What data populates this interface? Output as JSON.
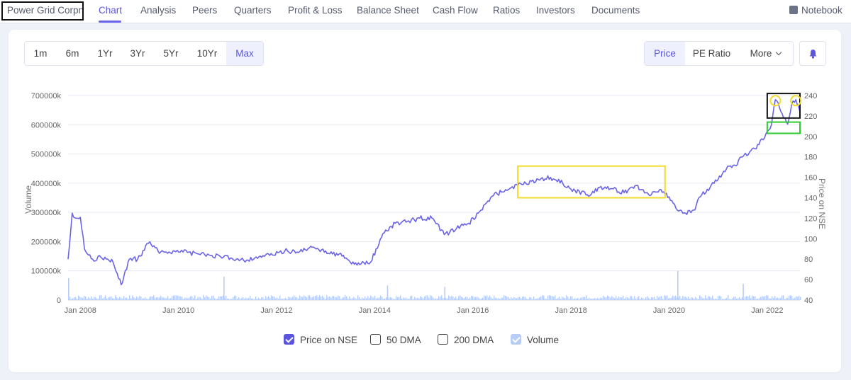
{
  "nav": {
    "company": "Power Grid Corpn",
    "tabs": [
      {
        "label": "Chart",
        "active": true
      },
      {
        "label": "Analysis"
      },
      {
        "label": "Peers"
      },
      {
        "label": "Quarters"
      },
      {
        "label": "Profit & Loss"
      },
      {
        "label": "Balance Sheet"
      },
      {
        "label": "Cash Flow"
      },
      {
        "label": "Ratios"
      },
      {
        "label": "Investors"
      },
      {
        "label": "Documents"
      }
    ],
    "notebook": "Notebook"
  },
  "ranges": [
    "1m",
    "6m",
    "1Yr",
    "3Yr",
    "5Yr",
    "10Yr",
    "Max"
  ],
  "active_range": "Max",
  "metrics": [
    "Price",
    "PE Ratio",
    "More"
  ],
  "active_metric": "Price",
  "colors": {
    "accent": "#5b55e0",
    "price_line": "#6b63e6",
    "volume_bars": "#b7cdf7",
    "annotation_yellow": "#f2da2a",
    "annotation_black": "#111111",
    "annotation_green": "#2ecc2e"
  },
  "legend": [
    {
      "label": "Price on NSE",
      "checked": true,
      "color": "#5b55e0"
    },
    {
      "label": "50 DMA",
      "checked": false
    },
    {
      "label": "200 DMA",
      "checked": false
    },
    {
      "label": "Volume",
      "checked": true,
      "color": "#b7cdf7"
    }
  ],
  "chart_data": {
    "type": "line",
    "title": "",
    "xlabel": "",
    "ylabel_left": "Volume",
    "ylabel_right": "Price on NSE",
    "left_axis": {
      "min": 0,
      "max": 700000000,
      "ticks": [
        "0",
        "100000k",
        "200000k",
        "300000k",
        "400000k",
        "500000k",
        "600000k",
        "700000k"
      ]
    },
    "right_axis": {
      "min": 40,
      "max": 240,
      "ticks": [
        40,
        60,
        80,
        100,
        120,
        140,
        160,
        180,
        200,
        220,
        240
      ]
    },
    "x_axis": {
      "start": "2007-10",
      "end": "2022-09",
      "ticks": [
        "Jan 2008",
        "Jan 2010",
        "Jan 2012",
        "Jan 2014",
        "Jan 2016",
        "Jan 2018",
        "Jan 2020",
        "Jan 2022"
      ]
    },
    "grid": true,
    "series": [
      {
        "name": "Price on NSE",
        "axis": "right",
        "x": [
          "2007-10",
          "2007-11",
          "2007-12",
          "2008-01",
          "2008-02",
          "2008-04",
          "2008-06",
          "2008-09",
          "2008-11",
          "2009-01",
          "2009-03",
          "2009-06",
          "2009-08",
          "2009-10",
          "2009-12",
          "2010-06",
          "2010-12",
          "2011-06",
          "2011-09",
          "2011-12",
          "2012-03",
          "2012-06",
          "2012-09",
          "2013-01",
          "2013-05",
          "2013-08",
          "2013-12",
          "2014-03",
          "2014-06",
          "2014-09",
          "2014-12",
          "2015-03",
          "2015-06",
          "2015-09",
          "2015-12",
          "2016-03",
          "2016-06",
          "2016-09",
          "2016-12",
          "2017-02",
          "2017-05",
          "2017-08",
          "2017-11",
          "2018-02",
          "2018-05",
          "2018-08",
          "2018-11",
          "2019-02",
          "2019-05",
          "2019-08",
          "2019-11",
          "2020-01",
          "2020-03",
          "2020-05",
          "2020-07",
          "2020-09",
          "2020-11",
          "2021-01",
          "2021-03",
          "2021-05",
          "2021-07",
          "2021-09",
          "2021-11",
          "2022-01",
          "2022-02",
          "2022-03",
          "2022-04",
          "2022-05",
          "2022-06",
          "2022-07",
          "2022-08",
          "2022-09"
        ],
        "y": [
          80,
          125,
          120,
          121,
          90,
          80,
          82,
          77,
          55,
          80,
          80,
          97,
          88,
          87,
          88,
          85,
          82,
          79,
          83,
          84,
          88,
          87,
          91,
          88,
          83,
          75,
          77,
          105,
          115,
          117,
          120,
          120,
          104,
          110,
          115,
          128,
          142,
          148,
          152,
          154,
          158,
          160,
          154,
          147,
          143,
          150,
          149,
          145,
          152,
          143,
          148,
          141,
          128,
          125,
          128,
          143,
          150,
          158,
          168,
          172,
          180,
          186,
          192,
          205,
          211,
          236,
          228,
          218,
          212,
          232,
          236,
          224
        ]
      },
      {
        "name": "Volume",
        "axis": "left",
        "note": "daily volume bars; mostly between 3,000k and 20,000k with spikes",
        "spikes": [
          {
            "x": "2007-10",
            "value": 75000000
          },
          {
            "x": "2010-12",
            "value": 80000000
          },
          {
            "x": "2014-04",
            "value": 50000000
          },
          {
            "x": "2015-06",
            "value": 45000000
          },
          {
            "x": "2020-03",
            "value": 100000000
          },
          {
            "x": "2021-07",
            "value": 55000000
          }
        ]
      }
    ],
    "annotations": [
      {
        "shape": "rectangle",
        "color": "yellow",
        "x_range": [
          "2016-12",
          "2019-12"
        ],
        "y_range": [
          140,
          171
        ]
      },
      {
        "shape": "rectangle",
        "color": "black",
        "x_range": [
          "2022-01",
          "2022-09"
        ],
        "y_range": [
          218,
          242
        ]
      },
      {
        "shape": "rectangle",
        "color": "green",
        "x_range": [
          "2022-01",
          "2022-09"
        ],
        "y_range": [
          203,
          214
        ]
      },
      {
        "shape": "circle",
        "color": "yellow",
        "x": "2022-03",
        "y": 235
      },
      {
        "shape": "circle",
        "color": "yellow",
        "x": "2022-08",
        "y": 235
      }
    ]
  }
}
